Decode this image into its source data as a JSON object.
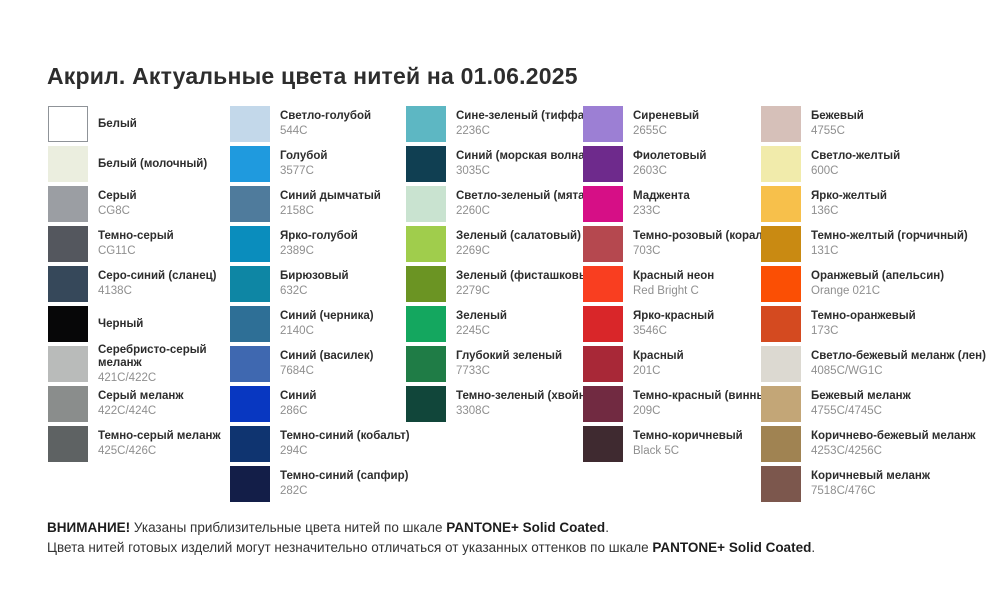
{
  "title": "Акрил. Актуальные цвета нитей на 01.06.2025",
  "columns": [
    {
      "items": [
        {
          "name": "Белый",
          "code": "",
          "hex": "#ffffff",
          "border": true
        },
        {
          "name": "Белый (молочный)",
          "code": "",
          "hex": "#ebeedf"
        },
        {
          "name": "Серый",
          "code": "CG8C",
          "hex": "#9b9ea3"
        },
        {
          "name": "Темно-серый",
          "code": "CG11C",
          "hex": "#54575e"
        },
        {
          "name": "Серо-синий (сланец)",
          "code": "4138C",
          "hex": "#36485a"
        },
        {
          "name": "Черный",
          "code": "",
          "hex": "#070708"
        },
        {
          "name": "Серебристо-серый меланж",
          "code": "421C/422C",
          "hex": "#b9bbba"
        },
        {
          "name": "Серый меланж",
          "code": "422C/424C",
          "hex": "#8a8d8c"
        },
        {
          "name": "Темно-серый меланж",
          "code": "425C/426C",
          "hex": "#5e6263"
        }
      ]
    },
    {
      "items": [
        {
          "name": "Светло-голубой",
          "code": "544C",
          "hex": "#c3d8ea"
        },
        {
          "name": "Голубой",
          "code": "3577C",
          "hex": "#1f9ade"
        },
        {
          "name": "Синий дымчатый",
          "code": "2158C",
          "hex": "#4f7b9c"
        },
        {
          "name": "Ярко-голубой",
          "code": "2389C",
          "hex": "#0a8dbd"
        },
        {
          "name": "Бирюзовый",
          "code": "632C",
          "hex": "#0e86a4"
        },
        {
          "name": "Синий (черника)",
          "code": "2140C",
          "hex": "#2e6f96"
        },
        {
          "name": "Синий (василек)",
          "code": "7684C",
          "hex": "#3f68b0"
        },
        {
          "name": "Синий",
          "code": "286C",
          "hex": "#0837c1"
        },
        {
          "name": "Темно-синий (кобальт)",
          "code": "294C",
          "hex": "#0f3470"
        },
        {
          "name": "Темно-синий (сапфир)",
          "code": "282C",
          "hex": "#131e48"
        }
      ]
    },
    {
      "items": [
        {
          "name": "Сине-зеленый (тиффани)",
          "code": "2236C",
          "hex": "#5db7c3"
        },
        {
          "name": "Синий (морская волна)",
          "code": "3035C",
          "hex": "#103f52"
        },
        {
          "name": "Светло-зеленый (мята)",
          "code": "2260C",
          "hex": "#c9e3d0"
        },
        {
          "name": "Зеленый (салатовый)",
          "code": "2269C",
          "hex": "#a0cd4c"
        },
        {
          "name": "Зеленый (фисташковый)",
          "code": "2279C",
          "hex": "#6b9423"
        },
        {
          "name": "Зеленый",
          "code": "2245C",
          "hex": "#14a75f"
        },
        {
          "name": "Глубокий зеленый",
          "code": "7733C",
          "hex": "#1f7c46"
        },
        {
          "name": "Темно-зеленый (хвойный)",
          "code": "3308C",
          "hex": "#11463a"
        }
      ]
    },
    {
      "items": [
        {
          "name": "Сиреневый",
          "code": "2655C",
          "hex": "#9c7fd4"
        },
        {
          "name": "Фиолетовый",
          "code": "2603C",
          "hex": "#6e2a8c"
        },
        {
          "name": "Маджента",
          "code": "233C",
          "hex": "#d60f86"
        },
        {
          "name": "Темно-розовый (коралл)",
          "code": "703C",
          "hex": "#b5484f"
        },
        {
          "name": "Красный неон",
          "code": "Red Bright C",
          "hex": "#f93e20"
        },
        {
          "name": "Ярко-красный",
          "code": "3546C",
          "hex": "#d92629"
        },
        {
          "name": "Красный",
          "code": "201C",
          "hex": "#a82837"
        },
        {
          "name": "Темно-красный (винный)",
          "code": "209C",
          "hex": "#712a41"
        },
        {
          "name": "Темно-коричневый",
          "code": "Black 5C",
          "hex": "#3f2a30"
        }
      ]
    },
    {
      "items": [
        {
          "name": "Бежевый",
          "code": "4755C",
          "hex": "#d6c0b9"
        },
        {
          "name": "Светло-желтый",
          "code": "600C",
          "hex": "#f1ebab"
        },
        {
          "name": "Ярко-желтый",
          "code": "136C",
          "hex": "#f7c04b"
        },
        {
          "name": "Темно-желтый (горчичный)",
          "code": "131C",
          "hex": "#c98a12"
        },
        {
          "name": "Оранжевый (апельсин)",
          "code": "Orange 021C",
          "hex": "#fb4f04"
        },
        {
          "name": "Темно-оранжевый",
          "code": "173C",
          "hex": "#d44a20"
        },
        {
          "name": "Светло-бежевый меланж (лен)",
          "code": "4085C/WG1C",
          "hex": "#dcd9d1"
        },
        {
          "name": "Бежевый меланж",
          "code": "4755C/4745C",
          "hex": "#c3a677"
        },
        {
          "name": "Коричнево-бежевый меланж",
          "code": "4253C/4256C",
          "hex": "#a08352"
        },
        {
          "name": "Коричневый меланж",
          "code": "7518C/476C",
          "hex": "#7c574d"
        }
      ]
    }
  ],
  "notes": {
    "l1b1": "ВНИМАНИЕ!",
    "l1t1": " Указаны приблизительные цвета нитей по шкале ",
    "l1b2": "PANTONE+ Solid Coated",
    "l1t2": ".",
    "l2t1": "Цвета нитей готовых изделий могут незначительно отличаться от указанных оттенков по шкале ",
    "l2b1": "PANTONE+ Solid Coated",
    "l2t2": "."
  }
}
